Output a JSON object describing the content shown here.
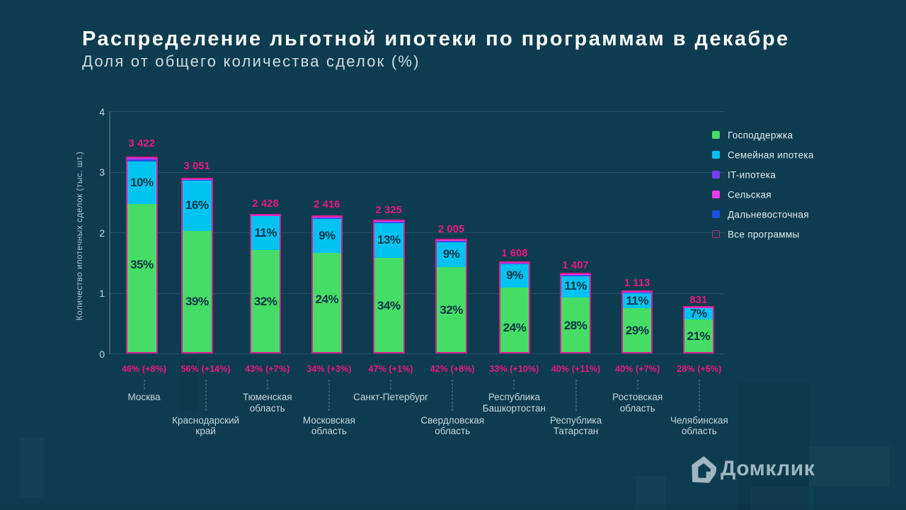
{
  "slide": {
    "background_color": "#0D3C50"
  },
  "chart_data": {
    "type": "bar",
    "stacked": true,
    "title": "Распределение льготной ипотеки по программам в декабре",
    "subtitle": "Доля от общего количества сделок (%)",
    "ylabel": "Количество ипотечных сделок (тыс. шт.)",
    "ylim": [
      0,
      4
    ],
    "yticks": [
      "0",
      "1",
      "2",
      "3",
      "4"
    ],
    "grid": true,
    "legend_position": "right",
    "legend": [
      {
        "label": "Господдержка",
        "color": "#46DD66",
        "style": "fill"
      },
      {
        "label": "Семейная ипотека",
        "color": "#00C3F2",
        "style": "fill"
      },
      {
        "label": "IT-ипотека",
        "color": "#7B3BF2",
        "style": "fill"
      },
      {
        "label": "Сельская",
        "color": "#EE3BEA",
        "style": "fill"
      },
      {
        "label": "Дальневосточная",
        "color": "#1D50DD",
        "style": "fill"
      },
      {
        "label": "Все программы",
        "color": "#C52B78",
        "style": "outline"
      }
    ],
    "series_names": [
      "Господдержка",
      "Семейная ипотека",
      "IT-ипотека",
      "Сельская",
      "Дальневосточная"
    ],
    "bars": [
      {
        "region": "Москва",
        "region_lines": [
          "Москва"
        ],
        "value": 3422,
        "value_label": "3 422",
        "share_label": "46% (+8%)",
        "gospodderzhka_pct": "35%",
        "semeynaya_pct": "10%",
        "height_units": 3.259,
        "green_top_units": 2.473,
        "cyan_top_units": 3.18,
        "label_row": 1
      },
      {
        "region": "Краснодарский край",
        "region_lines": [
          "Краснодарский",
          "край"
        ],
        "value": 3051,
        "value_label": "3 051",
        "share_label": "56% (+14%)",
        "gospodderzhka_pct": "39%",
        "semeynaya_pct": "16%",
        "height_units": 2.906,
        "green_top_units": 2.032,
        "cyan_top_units": 2.87,
        "label_row": 2
      },
      {
        "region": "Тюменская область",
        "region_lines": [
          "Тюменская",
          "область"
        ],
        "value": 2428,
        "value_label": "2 428",
        "share_label": "43% (+7%)",
        "gospodderzhka_pct": "32%",
        "semeynaya_pct": "11%",
        "height_units": 2.313,
        "green_top_units": 1.71,
        "cyan_top_units": 2.28,
        "label_row": 1
      },
      {
        "region": "Московская область",
        "region_lines": [
          "Московская",
          "область"
        ],
        "value": 2416,
        "value_label": "2 416",
        "share_label": "34% (+3%)",
        "gospodderzhka_pct": "24%",
        "semeynaya_pct": "9%",
        "height_units": 2.29,
        "green_top_units": 1.661,
        "cyan_top_units": 2.229,
        "label_row": 2
      },
      {
        "region": "Санкт-Петербург",
        "region_lines": [
          "Санкт-Петербург"
        ],
        "value": 2325,
        "value_label": "2 325",
        "share_label": "47% (+1%)",
        "gospodderzhka_pct": "34%",
        "semeynaya_pct": "13%",
        "height_units": 2.215,
        "green_top_units": 1.58,
        "cyan_top_units": 2.166,
        "label_row": 1
      },
      {
        "region": "Свердловская область",
        "region_lines": [
          "Свердловская",
          "область"
        ],
        "value": 2005,
        "value_label": "2 005",
        "share_label": "42% (+8%)",
        "gospodderzhka_pct": "32%",
        "semeynaya_pct": "9%",
        "height_units": 1.9,
        "green_top_units": 1.433,
        "cyan_top_units": 1.853,
        "label_row": 2
      },
      {
        "region": "Республика Башкортостан",
        "region_lines": [
          "Республика",
          "Башкортостан"
        ],
        "value": 1608,
        "value_label": "1 608",
        "share_label": "33% (+10%)",
        "gospodderzhka_pct": "24%",
        "semeynaya_pct": "9%",
        "height_units": 1.532,
        "green_top_units": 1.094,
        "cyan_top_units": 1.489,
        "label_row": 1
      },
      {
        "region": "Республика Татарстан",
        "region_lines": [
          "Республика",
          "Татарстан"
        ],
        "value": 1407,
        "value_label": "1 407",
        "share_label": "40% (+11%)",
        "gospodderzhka_pct": "28%",
        "semeynaya_pct": "11%",
        "height_units": 1.34,
        "green_top_units": 0.934,
        "cyan_top_units": 1.291,
        "label_row": 2
      },
      {
        "region": "Ростовская область",
        "region_lines": [
          "Ростовская",
          "область"
        ],
        "value": 1113,
        "value_label": "1 113",
        "share_label": "40% (+7%)",
        "gospodderzhka_pct": "29%",
        "semeynaya_pct": "11%",
        "height_units": 1.05,
        "green_top_units": 0.756,
        "cyan_top_units": 0.998,
        "label_row": 1
      },
      {
        "region": "Челябинская область",
        "region_lines": [
          "Челябинская",
          "область"
        ],
        "value": 831,
        "value_label": "831",
        "share_label": "28% (+5%)",
        "gospodderzhka_pct": "21%",
        "semeynaya_pct": "7%",
        "height_units": 0.791,
        "green_top_units": 0.566,
        "cyan_top_units": 0.759,
        "label_row": 2
      }
    ]
  },
  "logo": {
    "text": "Домклик"
  }
}
